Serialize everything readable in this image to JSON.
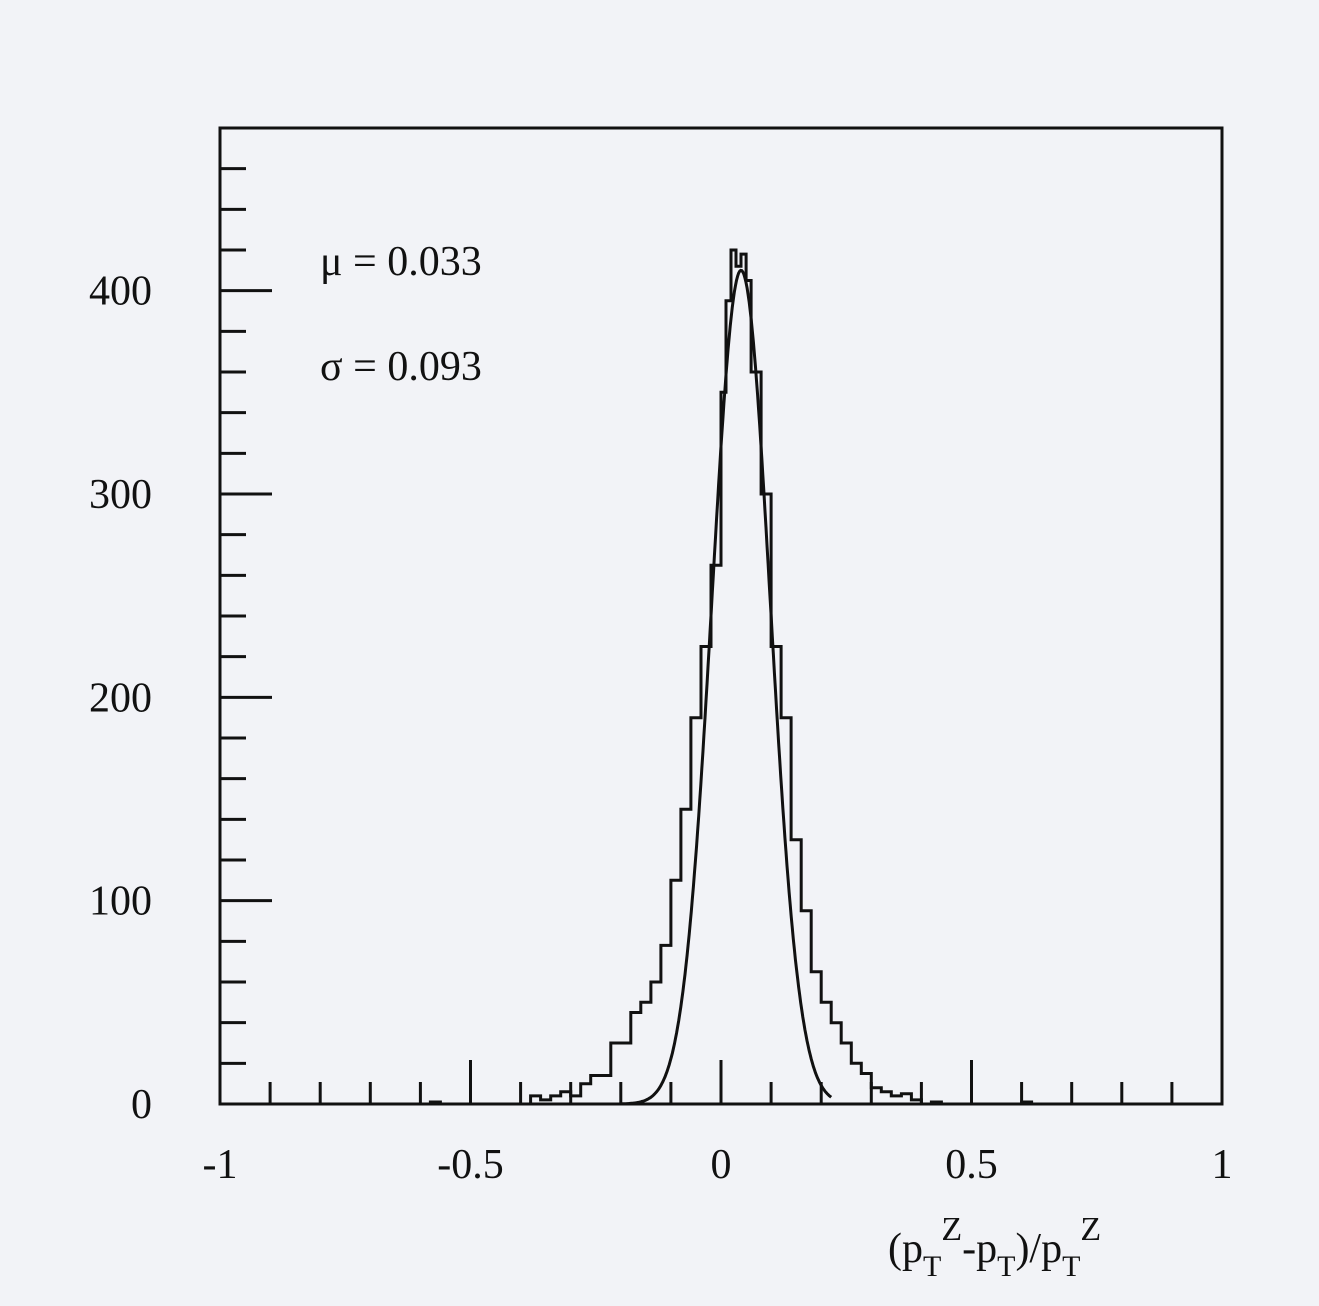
{
  "chart_data": {
    "type": "histogram",
    "title": "",
    "xlabel": {
      "parts": [
        "(p",
        "T",
        "Z",
        "-p",
        "T",
        ")/p",
        "T",
        "Z"
      ]
    },
    "ylabel": "",
    "xlim": [
      -1,
      1
    ],
    "ylim": [
      0,
      480
    ],
    "x_ticks": [
      -1,
      -0.5,
      0,
      0.5,
      1
    ],
    "x_tick_labels": [
      "-1",
      "-0.5",
      "0",
      "0.5",
      "1"
    ],
    "y_ticks": [
      0,
      100,
      200,
      300,
      400
    ],
    "y_tick_labels": [
      "0",
      "100",
      "200",
      "300",
      "400"
    ],
    "x_minor_step": 0.1,
    "y_minor_step": 20,
    "annotations": {
      "mu": "μ = 0.033",
      "sigma": "σ = 0.093"
    },
    "fit": {
      "type": "gaussian",
      "mean": 0.04,
      "sigma": 0.058,
      "amplitude": 410,
      "x_range": [
        -0.2,
        0.22
      ]
    },
    "bin_width": 0.02,
    "bins": [
      {
        "x0": -0.6,
        "y": 0
      },
      {
        "x0": -0.58,
        "y": 1
      },
      {
        "x0": -0.56,
        "y": 0
      },
      {
        "x0": -0.54,
        "y": 0
      },
      {
        "x0": -0.52,
        "y": 0
      },
      {
        "x0": -0.5,
        "y": 0
      },
      {
        "x0": -0.48,
        "y": 0
      },
      {
        "x0": -0.46,
        "y": 0
      },
      {
        "x0": -0.44,
        "y": 0
      },
      {
        "x0": -0.42,
        "y": 0
      },
      {
        "x0": -0.4,
        "y": 0
      },
      {
        "x0": -0.38,
        "y": 4
      },
      {
        "x0": -0.36,
        "y": 2
      },
      {
        "x0": -0.34,
        "y": 4
      },
      {
        "x0": -0.32,
        "y": 6
      },
      {
        "x0": -0.3,
        "y": 4
      },
      {
        "x0": -0.28,
        "y": 10
      },
      {
        "x0": -0.26,
        "y": 14
      },
      {
        "x0": -0.24,
        "y": 14
      },
      {
        "x0": -0.22,
        "y": 30
      },
      {
        "x0": -0.2,
        "y": 30
      },
      {
        "x0": -0.18,
        "y": 45
      },
      {
        "x0": -0.16,
        "y": 50
      },
      {
        "x0": -0.14,
        "y": 60
      },
      {
        "x0": -0.12,
        "y": 78
      },
      {
        "x0": -0.1,
        "y": 110
      },
      {
        "x0": -0.08,
        "y": 145
      },
      {
        "x0": -0.06,
        "y": 190
      },
      {
        "x0": -0.04,
        "y": 225
      },
      {
        "x0": -0.02,
        "y": 265
      },
      {
        "x0": 0.0,
        "y": 350
      },
      {
        "x0": 0.01,
        "y": 395
      },
      {
        "x0": 0.02,
        "y": 420
      },
      {
        "x0": 0.03,
        "y": 412
      },
      {
        "x0": 0.04,
        "y": 418
      },
      {
        "x0": 0.05,
        "y": 405
      },
      {
        "x0": 0.06,
        "y": 360
      },
      {
        "x0": 0.08,
        "y": 300
      },
      {
        "x0": 0.1,
        "y": 225
      },
      {
        "x0": 0.12,
        "y": 190
      },
      {
        "x0": 0.14,
        "y": 130
      },
      {
        "x0": 0.16,
        "y": 95
      },
      {
        "x0": 0.18,
        "y": 65
      },
      {
        "x0": 0.2,
        "y": 50
      },
      {
        "x0": 0.22,
        "y": 40
      },
      {
        "x0": 0.24,
        "y": 30
      },
      {
        "x0": 0.26,
        "y": 20
      },
      {
        "x0": 0.28,
        "y": 15
      },
      {
        "x0": 0.3,
        "y": 8
      },
      {
        "x0": 0.32,
        "y": 6
      },
      {
        "x0": 0.34,
        "y": 4
      },
      {
        "x0": 0.36,
        "y": 5
      },
      {
        "x0": 0.38,
        "y": 2
      },
      {
        "x0": 0.4,
        "y": 0
      },
      {
        "x0": 0.42,
        "y": 1
      },
      {
        "x0": 0.44,
        "y": 0
      },
      {
        "x0": 0.46,
        "y": 0
      },
      {
        "x0": 0.48,
        "y": 0
      },
      {
        "x0": 0.5,
        "y": 0
      },
      {
        "x0": 0.52,
        "y": 0
      },
      {
        "x0": 0.54,
        "y": 0
      },
      {
        "x0": 0.56,
        "y": 0
      },
      {
        "x0": 0.58,
        "y": 0
      },
      {
        "x0": 0.6,
        "y": 1
      },
      {
        "x0": 0.62,
        "y": 0
      }
    ],
    "grid": false,
    "legend": "none"
  }
}
